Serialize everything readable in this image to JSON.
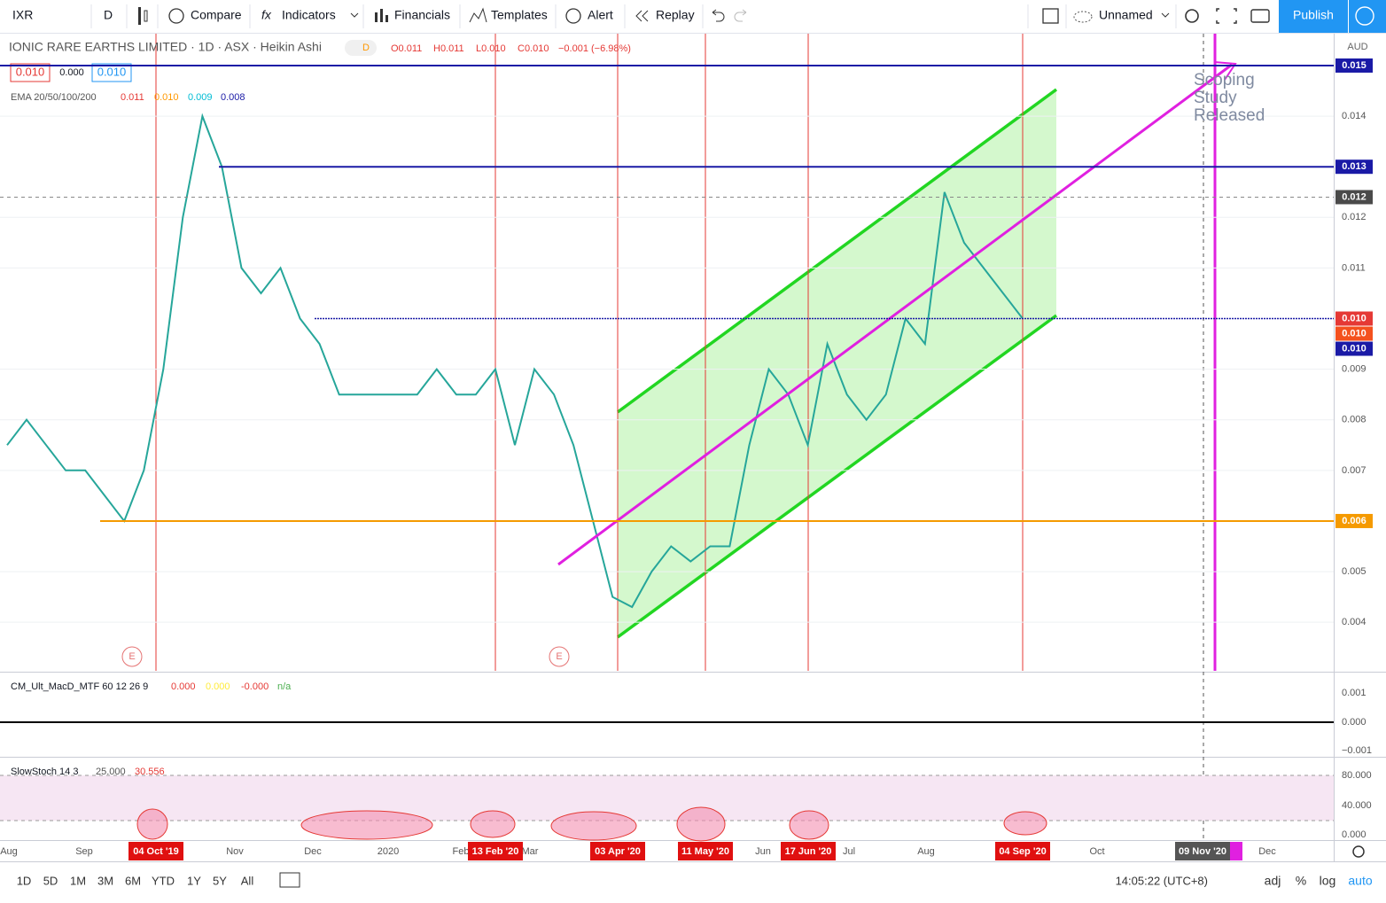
{
  "toolbar": {
    "symbol": "IXR",
    "interval": "D",
    "compare": "Compare",
    "indicators": "Indicators",
    "financials": "Financials",
    "templates": "Templates",
    "alert": "Alert",
    "replay": "Replay",
    "layout_name": "Unnamed",
    "publish": "Publish"
  },
  "legend": {
    "title": "IONIC RARE EARTHS LIMITED · 1D · ASX · Heikin Ashi",
    "badge": "D",
    "open": "O0.011",
    "high": "H0.011",
    "low": "L0.010",
    "close": "C0.010",
    "change": "−0.001 (−6.98%)",
    "quote": [
      "0.010",
      "0.000",
      "0.010"
    ],
    "ema_name": "EMA 20/50/100/200",
    "ema_values": [
      "0.011",
      "0.010",
      "0.009",
      "0.008"
    ]
  },
  "chart_data": {
    "type": "line",
    "currency": "AUD",
    "ylim": [
      0.00304,
      0.01563
    ],
    "yticks": [
      0.004,
      0.005,
      0.007,
      0.008,
      0.009,
      0.011,
      0.012,
      0.014
    ],
    "color": "#26a69a",
    "values": [
      0.0075,
      0.008,
      0.0075,
      0.007,
      0.007,
      0.0065,
      0.006,
      0.007,
      0.009,
      0.012,
      0.014,
      0.013,
      0.011,
      0.0105,
      0.011,
      0.01,
      0.0095,
      0.0085,
      0.0085,
      0.0085,
      0.0085,
      0.0085,
      0.009,
      0.0085,
      0.0085,
      0.009,
      0.0075,
      0.009,
      0.0085,
      0.0075,
      0.006,
      0.0045,
      0.0043,
      0.005,
      0.0055,
      0.0052,
      0.0055,
      0.0055,
      0.0075,
      0.009,
      0.0085,
      0.0075,
      0.0095,
      0.0085,
      0.008,
      0.0085,
      0.01,
      0.0095,
      0.0125,
      0.0115,
      0.011,
      0.0105,
      0.01
    ],
    "price_tags": [
      {
        "value": 0.015,
        "label": "0.015",
        "color": "#1a1aa6",
        "line": true
      },
      {
        "value": 0.013,
        "label": "0.013",
        "color": "#1a1aa6",
        "line": true
      },
      {
        "value": 0.0124,
        "label": "0.012",
        "color": "#4a4a4a",
        "line": false
      },
      {
        "value": 0.01,
        "label": "0.010",
        "color": "#e53935",
        "line": true
      },
      {
        "value": 0.01,
        "label": "0.010",
        "color": "#f4511e",
        "line": false
      },
      {
        "value": 0.01,
        "label": "0.010",
        "color": "#1a1aa6",
        "line": false
      },
      {
        "value": 0.006,
        "label": "0.006",
        "color": "#f59a00",
        "line": true
      }
    ],
    "annotation": [
      "Scoping",
      "Study",
      "Released"
    ],
    "earnings_markers": [
      "E",
      "E"
    ]
  },
  "macd": {
    "name": "CM_Ult_MacD_MTF 60 12 26 9",
    "values": [
      "0.000",
      "0.000",
      "-0.000",
      "n/a"
    ],
    "axis": [
      "0.001",
      "0.000",
      "−0.001"
    ]
  },
  "stoch": {
    "name": "SlowStoch 14 3",
    "values": [
      "25.000",
      "30.556"
    ],
    "axis": [
      "80.000",
      "40.000",
      "0.000"
    ]
  },
  "time_axis": {
    "labels": [
      "Aug",
      "Sep",
      "Nov",
      "Dec",
      "2020",
      "Feb",
      "Mar",
      "Jun",
      "Jul",
      "Aug",
      "Oct",
      "Dec"
    ],
    "event_dates": [
      "04 Oct '19",
      "13 Feb '20",
      "03 Apr '20",
      "11 May '20",
      "17 Jun '20",
      "04 Sep '20"
    ],
    "cursor_date": "09 Nov '20"
  },
  "bottom_bar": {
    "ranges": [
      "1D",
      "5D",
      "1M",
      "3M",
      "6M",
      "YTD",
      "1Y",
      "5Y",
      "All"
    ],
    "time": "14:05:22 (UTC+8)",
    "options": [
      "adj",
      "%",
      "log",
      "auto"
    ]
  }
}
